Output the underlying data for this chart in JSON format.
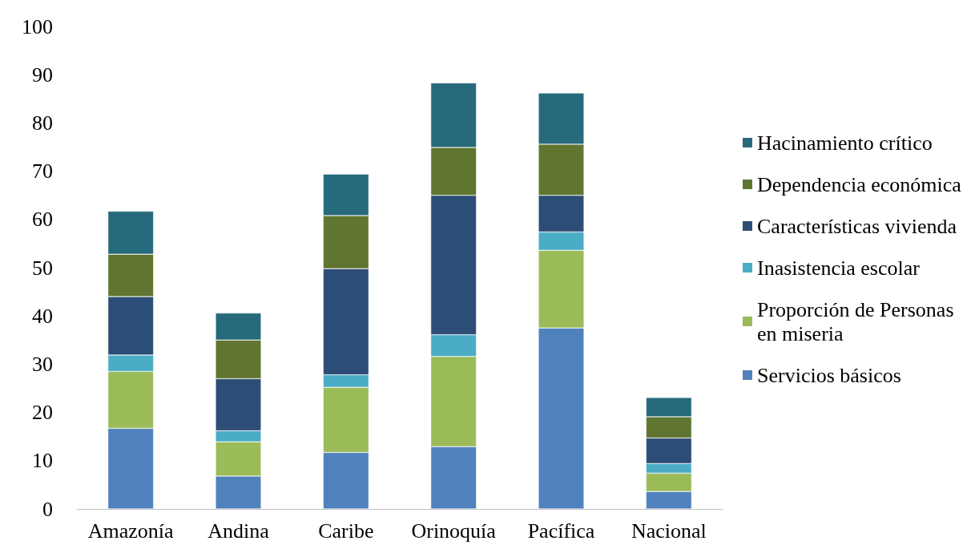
{
  "chart_data": {
    "type": "bar",
    "stacked": true,
    "categories": [
      "Amazonía",
      "Andina",
      "Caribe",
      "Orinoquía",
      "Pacífica",
      "Nacional"
    ],
    "series": [
      {
        "name": "Servicios básicos",
        "color": "#4f81bd",
        "values": [
          16.7,
          6.8,
          11.7,
          12.9,
          37.5,
          3.6
        ]
      },
      {
        "name": "Proporción de Personas en miseria",
        "color": "#9bbb59",
        "values": [
          11.8,
          7.1,
          13.5,
          18.7,
          16.1,
          3.8
        ]
      },
      {
        "name": "Inasistencia escolar",
        "color": "#4bacc6",
        "values": [
          3.4,
          2.3,
          2.6,
          4.5,
          3.8,
          2.0
        ]
      },
      {
        "name": "Características vivienda",
        "color": "#2c4d75",
        "values": [
          12.1,
          10.8,
          22.0,
          28.9,
          7.6,
          5.3
        ]
      },
      {
        "name": "Dependencia económica",
        "color": "#5f7530",
        "values": [
          8.8,
          8.0,
          11.0,
          9.9,
          10.6,
          4.4
        ]
      },
      {
        "name": "Hacinamiento crítico",
        "color": "#276a7c",
        "values": [
          8.9,
          5.6,
          8.6,
          13.4,
          10.6,
          4.0
        ]
      }
    ],
    "ylim": [
      0,
      100
    ],
    "yticks": [
      0,
      10,
      20,
      30,
      40,
      50,
      60,
      70,
      80,
      90,
      100
    ],
    "grid": false,
    "legend": "right"
  }
}
